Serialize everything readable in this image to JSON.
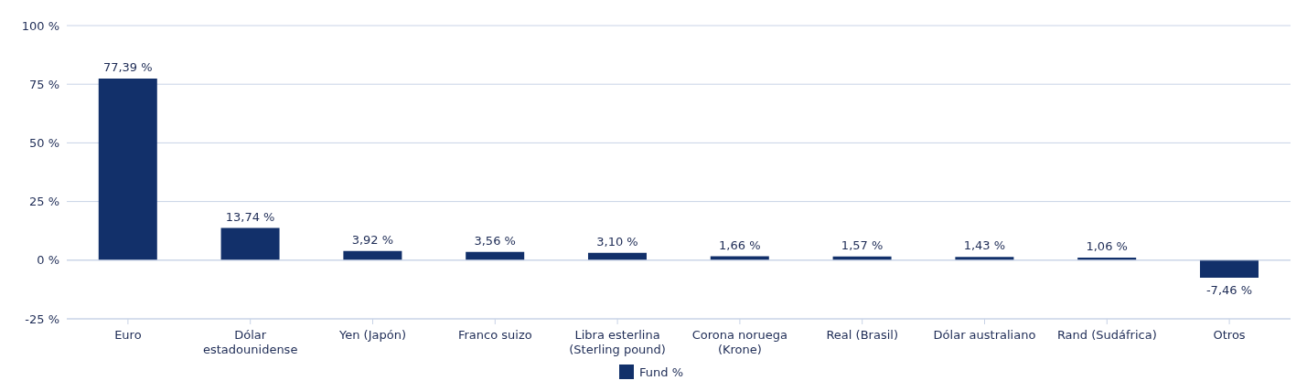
{
  "chart_data": {
    "type": "bar",
    "categories": [
      "Euro",
      "Dólar estadounidense",
      "Yen (Japón)",
      "Franco suizo",
      "Libra esterlina (Sterling pound)",
      "Corona noruega (Krone)",
      "Real (Brasil)",
      "Dólar australiano",
      "Rand (Sudáfrica)",
      "Otros"
    ],
    "series": [
      {
        "name": "Fund %",
        "color": "#12306a",
        "values": [
          77.39,
          13.74,
          3.92,
          3.56,
          3.1,
          1.66,
          1.57,
          1.43,
          1.06,
          -7.46
        ],
        "value_labels": [
          "77,39 %",
          "13,74 %",
          "3,92 %",
          "3,56 %",
          "3,10 %",
          "1,66 %",
          "1,57 %",
          "1,43 %",
          "1,06 %",
          "-7,46 %"
        ]
      }
    ],
    "ylim": [
      -25,
      100
    ],
    "yticks": [
      {
        "value": -25,
        "label": "-25 %"
      },
      {
        "value": 0,
        "label": "0 %"
      },
      {
        "value": 25,
        "label": "25 %"
      },
      {
        "value": 50,
        "label": "50 %"
      },
      {
        "value": 75,
        "label": "75 %"
      },
      {
        "value": 100,
        "label": "100 %"
      }
    ],
    "grid": "y",
    "legend": "bottom"
  }
}
